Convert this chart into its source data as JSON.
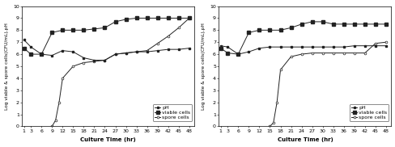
{
  "x_ticks": [
    1,
    3,
    6,
    9,
    12,
    15,
    18,
    21,
    24,
    27,
    30,
    33,
    36,
    39,
    42,
    45,
    48
  ],
  "left": {
    "pH": [
      7.2,
      6.6,
      6.0,
      5.9,
      6.3,
      6.2,
      5.7,
      5.5,
      5.5,
      6.0,
      6.1,
      6.2,
      6.2,
      6.3,
      6.4,
      6.4,
      6.5
    ],
    "viable": [
      6.5,
      6.0,
      6.0,
      7.8,
      8.0,
      8.0,
      8.0,
      8.1,
      8.2,
      8.7,
      8.9,
      9.0,
      9.0,
      9.0,
      9.0,
      9.0,
      9.0
    ],
    "spore": [
      0.0,
      0.0,
      0.0,
      0.0,
      0.0,
      0.0,
      0.0,
      0.0,
      0.0,
      0.0,
      0.0,
      0.0,
      0.0,
      0.0,
      0.0,
      0.0,
      0.0
    ]
  },
  "left_spore_x": [
    9,
    10,
    11,
    12,
    15,
    18,
    21,
    24,
    27,
    30,
    33,
    36,
    39,
    42,
    45,
    48
  ],
  "left_spore_y": [
    0.0,
    0.5,
    2.0,
    4.0,
    5.0,
    5.3,
    5.4,
    5.5,
    6.0,
    6.1,
    6.2,
    6.3,
    6.9,
    7.5,
    8.2,
    9.0
  ],
  "right": {
    "pH": [
      6.7,
      6.6,
      6.0,
      6.2,
      6.5,
      6.6,
      6.6,
      6.6,
      6.6,
      6.6,
      6.6,
      6.6,
      6.6,
      6.7,
      6.7,
      6.7,
      6.7
    ],
    "viable": [
      6.5,
      6.1,
      6.0,
      7.8,
      8.0,
      8.0,
      8.0,
      8.2,
      8.5,
      8.7,
      8.7,
      8.5,
      8.5,
      8.5,
      8.5,
      8.5,
      8.5
    ],
    "spore": [
      0.0,
      0.0,
      0.0,
      0.0,
      0.0,
      0.0,
      0.0,
      0.0,
      0.0,
      0.0,
      0.0,
      0.0,
      0.0,
      0.0,
      0.0,
      0.0,
      0.0
    ]
  },
  "right_spore_x": [
    15,
    16,
    17,
    18,
    21,
    24,
    27,
    30,
    33,
    36,
    39,
    42,
    45,
    48
  ],
  "right_spore_y": [
    0.0,
    0.3,
    2.0,
    4.7,
    5.8,
    6.0,
    6.1,
    6.1,
    6.1,
    6.1,
    6.1,
    6.1,
    6.9,
    7.0
  ],
  "ylim": [
    0,
    10
  ],
  "yticks": [
    0,
    1,
    2,
    3,
    4,
    5,
    6,
    7,
    8,
    9,
    10
  ],
  "ylabel": "Log viable & spore cells(CFU/mL),pH",
  "xlabel": "Culture Time (hr)",
  "line_color": "#222222",
  "ms_small": 2.0,
  "ms_large": 2.5,
  "lw": 0.7,
  "legend_labels": [
    "pH",
    "viable cells",
    "spore cells"
  ],
  "axis_fontsize": 5.0,
  "tick_fontsize": 4.5,
  "ylabel_fontsize": 4.2
}
